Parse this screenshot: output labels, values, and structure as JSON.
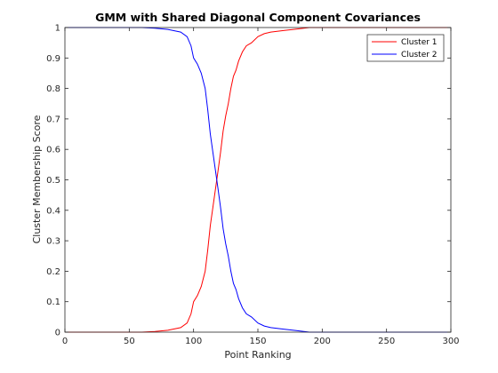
{
  "chart_data": {
    "type": "line",
    "title": "GMM with Shared Diagonal Component Covariances",
    "xlabel": "Point Ranking",
    "ylabel": "Cluster Membership Score",
    "xlim": [
      0,
      300
    ],
    "ylim": [
      0,
      1
    ],
    "xticks": [
      "0",
      "50",
      "100",
      "150",
      "200",
      "250",
      "300"
    ],
    "yticks": [
      "0",
      "0.1",
      "0.2",
      "0.3",
      "0.4",
      "0.5",
      "0.6",
      "0.7",
      "0.8",
      "0.9",
      "1"
    ],
    "grid": false,
    "legend": {
      "position": "top-right",
      "entries": [
        "Cluster 1",
        "Cluster 2"
      ]
    },
    "series": [
      {
        "name": "Cluster 1",
        "color": "#ff0000",
        "x": [
          0,
          60,
          70,
          80,
          90,
          95,
          98,
          100,
          103,
          106,
          109,
          111,
          113,
          115,
          117,
          119,
          121,
          123,
          125,
          127,
          129,
          131,
          133,
          135,
          138,
          141,
          145,
          150,
          155,
          160,
          170,
          180,
          190,
          195,
          200,
          300
        ],
        "y": [
          0.0,
          0.0,
          0.002,
          0.006,
          0.015,
          0.03,
          0.06,
          0.1,
          0.12,
          0.15,
          0.2,
          0.27,
          0.35,
          0.41,
          0.47,
          0.53,
          0.59,
          0.66,
          0.71,
          0.75,
          0.8,
          0.84,
          0.86,
          0.89,
          0.92,
          0.94,
          0.95,
          0.97,
          0.98,
          0.985,
          0.99,
          0.995,
          1.0,
          1.0,
          1.0,
          1.0
        ]
      },
      {
        "name": "Cluster 2",
        "color": "#0000ff",
        "x": [
          0,
          60,
          70,
          80,
          90,
          95,
          98,
          100,
          103,
          106,
          109,
          111,
          113,
          115,
          117,
          119,
          121,
          123,
          125,
          127,
          129,
          131,
          133,
          135,
          138,
          141,
          145,
          150,
          155,
          160,
          170,
          180,
          190,
          195,
          200,
          300
        ],
        "y": [
          1.0,
          1.0,
          0.998,
          0.994,
          0.985,
          0.97,
          0.94,
          0.9,
          0.88,
          0.85,
          0.8,
          0.73,
          0.65,
          0.59,
          0.53,
          0.47,
          0.41,
          0.34,
          0.29,
          0.25,
          0.2,
          0.16,
          0.14,
          0.11,
          0.08,
          0.06,
          0.05,
          0.03,
          0.02,
          0.015,
          0.01,
          0.005,
          0.0,
          0.0,
          0.0,
          0.0
        ]
      }
    ]
  }
}
